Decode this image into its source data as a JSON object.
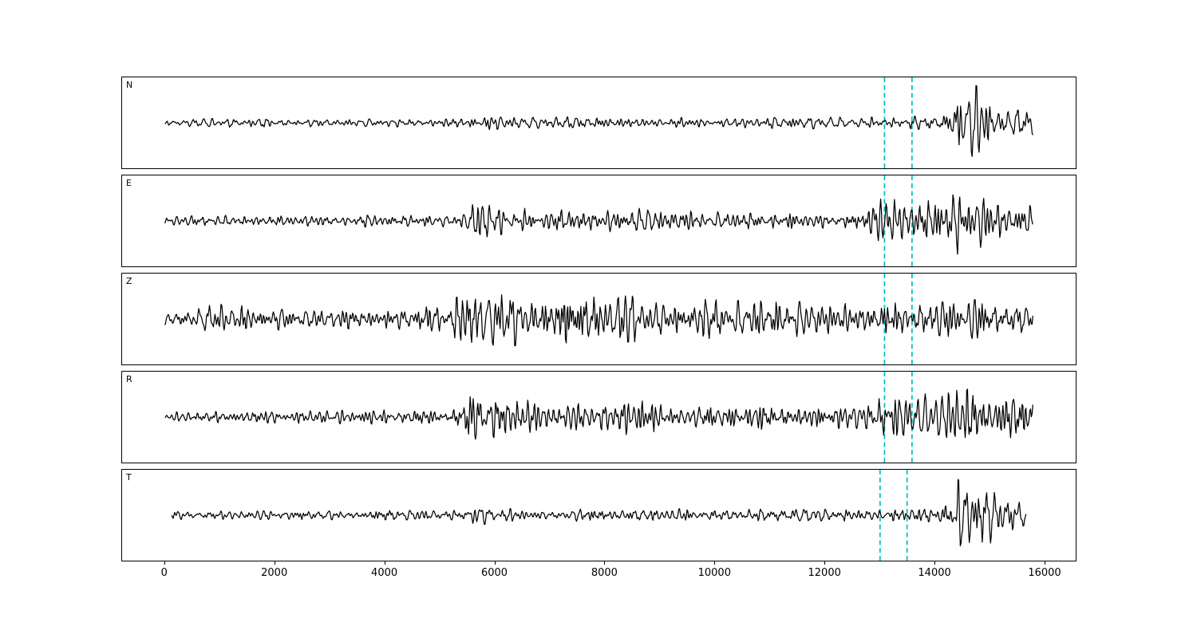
{
  "figure": {
    "background": "#ffffff",
    "frame_color": "#000000",
    "trace_color": "#000000",
    "pick_color": "#00c2c2",
    "pick_line_style": "dashed"
  },
  "chart_data": {
    "type": "line",
    "title": "",
    "xlabel": "",
    "ylabel": "",
    "xlim": [
      -780,
      16580
    ],
    "x_ticks": [
      0,
      2000,
      4000,
      6000,
      8000,
      10000,
      12000,
      14000,
      16000
    ],
    "x_tick_labels": [
      "0",
      "2000",
      "4000",
      "6000",
      "8000",
      "10000",
      "12000",
      "14000",
      "16000"
    ],
    "trace_x": [
      0,
      15800
    ],
    "pick_lines": [
      13100,
      13600
    ],
    "grid": false,
    "legend": false,
    "channels": [
      {
        "label": "N",
        "seed": 101,
        "envelope": [
          [
            0,
            0.1
          ],
          [
            2000,
            0.11
          ],
          [
            5300,
            0.11
          ],
          [
            5500,
            0.2
          ],
          [
            6000,
            0.16
          ],
          [
            8000,
            0.13
          ],
          [
            10000,
            0.14
          ],
          [
            12500,
            0.15
          ],
          [
            13800,
            0.16
          ],
          [
            14250,
            0.35
          ],
          [
            14550,
            1.0
          ],
          [
            14800,
            0.9
          ],
          [
            15100,
            0.55
          ],
          [
            15400,
            0.38
          ],
          [
            15800,
            0.3
          ]
        ]
      },
      {
        "label": "E",
        "seed": 202,
        "envelope": [
          [
            0,
            0.13
          ],
          [
            3000,
            0.15
          ],
          [
            5300,
            0.16
          ],
          [
            5600,
            0.45
          ],
          [
            6200,
            0.32
          ],
          [
            8000,
            0.26
          ],
          [
            8800,
            0.32
          ],
          [
            9500,
            0.24
          ],
          [
            12800,
            0.22
          ],
          [
            13050,
            0.7
          ],
          [
            13250,
            0.78
          ],
          [
            13500,
            0.45
          ],
          [
            13800,
            0.55
          ],
          [
            14200,
            0.62
          ],
          [
            14550,
            0.95
          ],
          [
            14900,
            0.6
          ],
          [
            15300,
            0.48
          ],
          [
            15800,
            0.38
          ]
        ]
      },
      {
        "label": "Z",
        "seed": 303,
        "envelope": [
          [
            0,
            0.25
          ],
          [
            800,
            0.38
          ],
          [
            1500,
            0.32
          ],
          [
            3000,
            0.28
          ],
          [
            5200,
            0.3
          ],
          [
            5500,
            0.95
          ],
          [
            5800,
            1.0
          ],
          [
            6200,
            0.7
          ],
          [
            6800,
            0.55
          ],
          [
            7500,
            0.6
          ],
          [
            8800,
            0.55
          ],
          [
            9500,
            0.5
          ],
          [
            10500,
            0.45
          ],
          [
            12000,
            0.42
          ],
          [
            13200,
            0.42
          ],
          [
            14000,
            0.4
          ],
          [
            14700,
            0.48
          ],
          [
            15200,
            0.42
          ],
          [
            15800,
            0.35
          ]
        ]
      },
      {
        "label": "R",
        "seed": 404,
        "envelope": [
          [
            0,
            0.13
          ],
          [
            3000,
            0.16
          ],
          [
            5300,
            0.2
          ],
          [
            5600,
            0.55
          ],
          [
            6000,
            0.5
          ],
          [
            6500,
            0.42
          ],
          [
            7500,
            0.38
          ],
          [
            8800,
            0.45
          ],
          [
            9300,
            0.32
          ],
          [
            11000,
            0.3
          ],
          [
            12900,
            0.28
          ],
          [
            13120,
            0.85
          ],
          [
            13400,
            0.6
          ],
          [
            13800,
            0.55
          ],
          [
            14100,
            0.7
          ],
          [
            14450,
            0.9
          ],
          [
            14800,
            0.72
          ],
          [
            15300,
            0.52
          ],
          [
            15800,
            0.45
          ]
        ]
      },
      {
        "label": "T",
        "seed": 505,
        "envelope": [
          [
            0,
            0.1
          ],
          [
            3000,
            0.11
          ],
          [
            5350,
            0.12
          ],
          [
            5600,
            0.26
          ],
          [
            6100,
            0.16
          ],
          [
            8500,
            0.14
          ],
          [
            9000,
            0.16
          ],
          [
            12000,
            0.14
          ],
          [
            13500,
            0.16
          ],
          [
            14100,
            0.2
          ],
          [
            14400,
            0.8
          ],
          [
            14700,
            1.0
          ],
          [
            15000,
            0.85
          ],
          [
            15300,
            0.5
          ],
          [
            15600,
            0.4
          ],
          [
            15800,
            0.34
          ]
        ]
      }
    ]
  }
}
